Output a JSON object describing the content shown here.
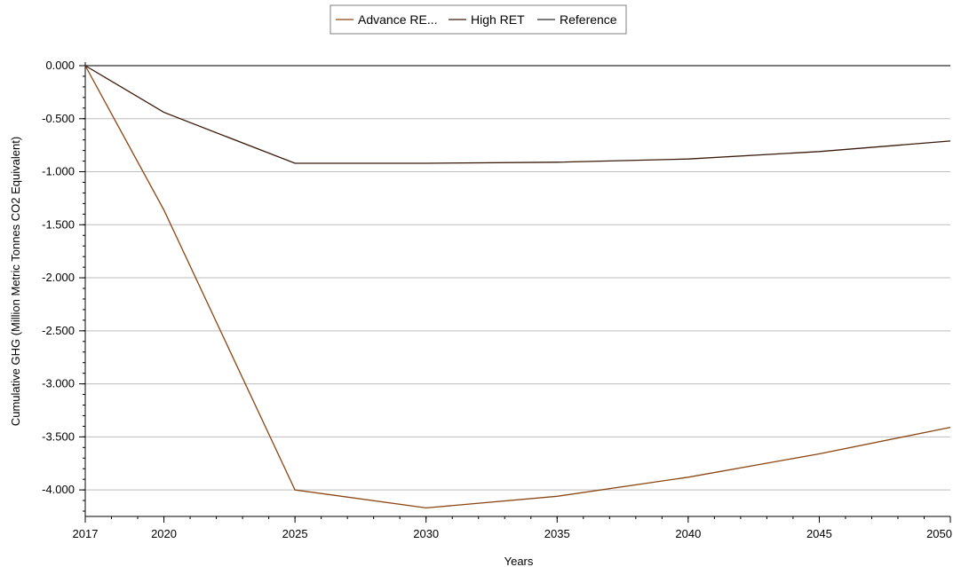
{
  "chart_data": {
    "type": "line",
    "title": "",
    "xlabel": "Years",
    "ylabel": "Cumulative GHG (Million Metric Tonnes CO2 Equivalent)",
    "x": [
      2017,
      2020,
      2025,
      2030,
      2035,
      2040,
      2045,
      2050
    ],
    "x_tick_labels": [
      "2017",
      "2020",
      "2025",
      "2030",
      "2035",
      "2040",
      "2045",
      "2050"
    ],
    "ylim": [
      -4.25,
      0.0
    ],
    "y_ticks": [
      0.0,
      -0.5,
      -1.0,
      -1.5,
      -2.0,
      -2.5,
      -3.0,
      -3.5,
      -4.0
    ],
    "y_tick_labels": [
      "0.000",
      "-0.500",
      "-1.000",
      "-1.500",
      "-2.000",
      "-2.500",
      "-3.000",
      "-3.500",
      "-4.000"
    ],
    "grid": true,
    "legend_position": "top-center",
    "series": [
      {
        "name": "Advance RE...",
        "color": "#8b4513",
        "values": [
          0.0,
          -1.36,
          -4.0,
          -4.17,
          -4.06,
          -3.88,
          -3.66,
          -3.41
        ]
      },
      {
        "name": "High RET",
        "color": "#3a1a0a",
        "values": [
          0.0,
          -0.44,
          -0.92,
          -0.92,
          -0.91,
          -0.88,
          -0.81,
          -0.71
        ]
      },
      {
        "name": "Reference",
        "color": "#2b2b2b",
        "values": [
          0.0,
          0.0,
          0.0,
          0.0,
          0.0,
          0.0,
          0.0,
          0.0
        ]
      }
    ]
  }
}
